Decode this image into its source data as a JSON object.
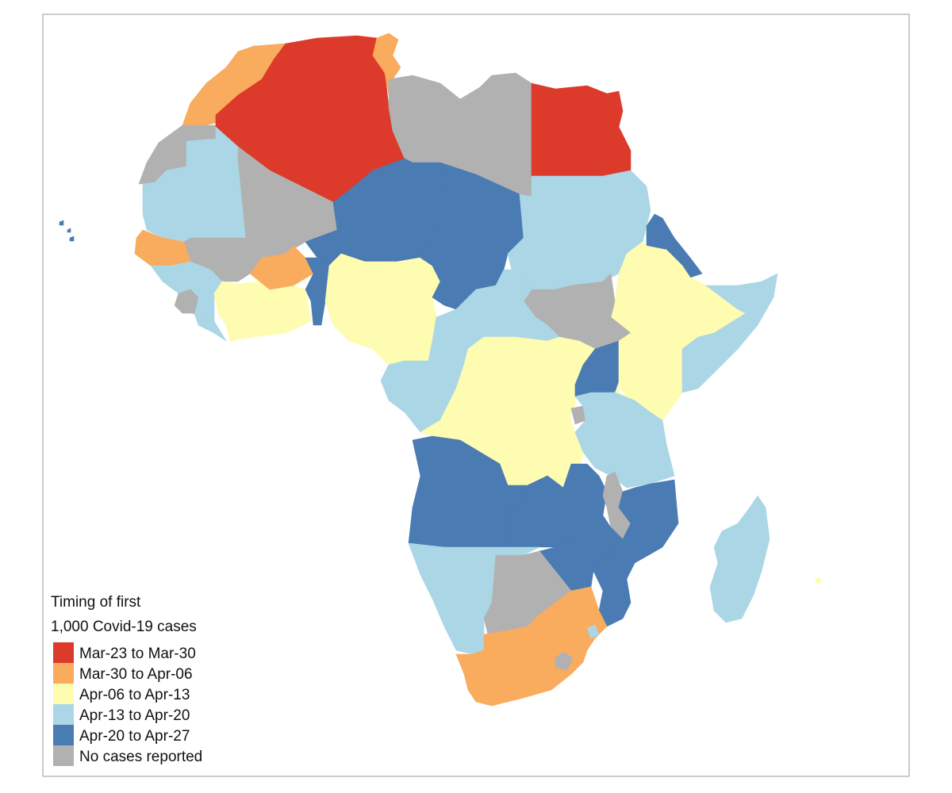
{
  "colors": {
    "mar23_mar30": "#dc3a2a",
    "mar30_apr06": "#f9ab5e",
    "apr06_apr13": "#fdfcb0",
    "apr13_apr20": "#abd6e6",
    "apr20_apr27": "#4a7bb3",
    "no_cases": "#b1b1b1",
    "frame": "#999999"
  },
  "legend": {
    "title_line1": "Timing of first",
    "title_line2": "1,000 Covid-19 cases",
    "items": [
      {
        "label": "Mar-23 to Mar-30",
        "color": "#dc3a2a"
      },
      {
        "label": "Mar-30 to Apr-06",
        "color": "#f9ab5e"
      },
      {
        "label": "Apr-06 to Apr-13",
        "color": "#fdfcb0"
      },
      {
        "label": "Apr-13 to Apr-20",
        "color": "#abd6e6"
      },
      {
        "label": "Apr-20 to Apr-27",
        "color": "#4a7bb3"
      },
      {
        "label": "No cases reported",
        "color": "#b1b1b1"
      }
    ]
  }
}
